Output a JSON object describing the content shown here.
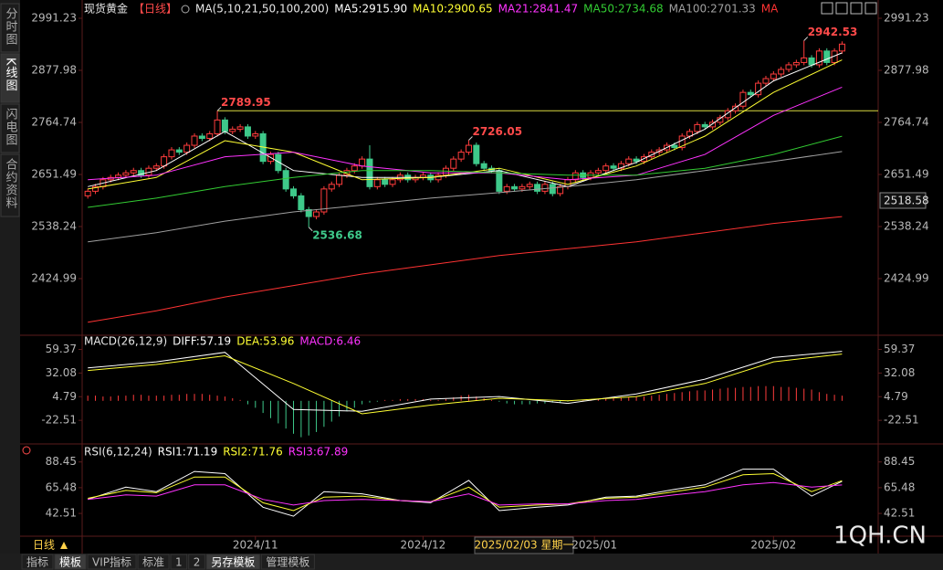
{
  "chart_data": [
    {
      "type": "candlestick",
      "title": "现货黄金",
      "period": "【日线】",
      "indicator": "MA(5,10,21,50,100,200)",
      "xlim": [
        -0.5,
        103.5
      ],
      "ylim": [
        2305.8,
        3015.07
      ],
      "yticks": [
        2991.23,
        2877.98,
        2764.74,
        2651.49,
        2538.24,
        2424.99
      ],
      "up_color": "#ff3c3c",
      "down_color": "#3ec98a",
      "open": [
        2605,
        2615,
        2625,
        2640,
        2645,
        2650,
        2655,
        2660,
        2650,
        2665,
        2670,
        2690,
        2705,
        2700,
        2715,
        2735,
        2730,
        2740,
        2770,
        2745,
        2750,
        2755,
        2735,
        2740,
        2680,
        2695,
        2660,
        2620,
        2605,
        2575,
        2560,
        2570,
        2620,
        2630,
        2650,
        2660,
        2670,
        2685,
        2625,
        2640,
        2630,
        2640,
        2650,
        2640,
        2645,
        2650,
        2640,
        2650,
        2665,
        2685,
        2700,
        2715,
        2675,
        2665,
        2660,
        2615,
        2625,
        2620,
        2625,
        2630,
        2615,
        2630,
        2610,
        2625,
        2640,
        2655,
        2645,
        2655,
        2660,
        2670,
        2665,
        2675,
        2685,
        2680,
        2690,
        2700,
        2705,
        2715,
        2710,
        2735,
        2745,
        2760,
        2755,
        2765,
        2775,
        2790,
        2800,
        2830,
        2825,
        2850,
        2860,
        2870,
        2880,
        2890,
        2895,
        2905,
        2890,
        2920,
        2895,
        2920
      ],
      "high": [
        2621,
        2631,
        2646,
        2651,
        2656,
        2661,
        2666,
        2666,
        2671,
        2676,
        2696,
        2711,
        2711,
        2721,
        2741,
        2741,
        2746,
        2789.95,
        2776,
        2756,
        2761,
        2761,
        2746,
        2746,
        2701,
        2701,
        2666,
        2626,
        2611,
        2581,
        2576,
        2626,
        2636,
        2656,
        2666,
        2676,
        2691,
        2715,
        2646,
        2646,
        2646,
        2656,
        2656,
        2651,
        2656,
        2656,
        2656,
        2671,
        2691,
        2706,
        2726.05,
        2721,
        2681,
        2671,
        2666,
        2631,
        2631,
        2631,
        2636,
        2636,
        2636,
        2636,
        2631,
        2646,
        2661,
        2661,
        2661,
        2666,
        2676,
        2676,
        2681,
        2691,
        2691,
        2696,
        2706,
        2711,
        2721,
        2721,
        2741,
        2751,
        2766,
        2766,
        2771,
        2781,
        2796,
        2806,
        2836,
        2836,
        2856,
        2866,
        2876,
        2886,
        2896,
        2901,
        2942.53,
        2911,
        2926,
        2926,
        2926,
        2941
      ],
      "low": [
        2599,
        2609,
        2619,
        2634,
        2639,
        2644,
        2649,
        2644,
        2644,
        2659,
        2664,
        2684,
        2694,
        2694,
        2709,
        2724,
        2724,
        2734,
        2739,
        2739,
        2744,
        2729,
        2729,
        2674,
        2674,
        2654,
        2614,
        2599,
        2569,
        2536.68,
        2554,
        2564,
        2614,
        2624,
        2644,
        2654,
        2664,
        2619,
        2619,
        2624,
        2624,
        2634,
        2634,
        2634,
        2639,
        2634,
        2634,
        2644,
        2659,
        2679,
        2694,
        2669,
        2659,
        2654,
        2609,
        2609,
        2614,
        2614,
        2619,
        2609,
        2609,
        2604,
        2604,
        2619,
        2634,
        2639,
        2639,
        2649,
        2654,
        2659,
        2659,
        2669,
        2674,
        2674,
        2684,
        2694,
        2699,
        2704,
        2704,
        2729,
        2739,
        2749,
        2749,
        2759,
        2769,
        2784,
        2794,
        2819,
        2819,
        2844,
        2854,
        2864,
        2874,
        2884,
        2889,
        2884,
        2884,
        2889,
        2889,
        2914
      ],
      "close": [
        2615,
        2625,
        2640,
        2645,
        2650,
        2655,
        2660,
        2650,
        2665,
        2670,
        2690,
        2705,
        2700,
        2715,
        2735,
        2730,
        2740,
        2770,
        2745,
        2750,
        2755,
        2735,
        2740,
        2680,
        2695,
        2660,
        2620,
        2605,
        2575,
        2560,
        2570,
        2620,
        2630,
        2650,
        2660,
        2670,
        2685,
        2625,
        2640,
        2630,
        2640,
        2650,
        2640,
        2645,
        2650,
        2640,
        2650,
        2665,
        2685,
        2700,
        2715,
        2675,
        2665,
        2660,
        2615,
        2625,
        2620,
        2625,
        2630,
        2615,
        2630,
        2610,
        2625,
        2640,
        2655,
        2645,
        2655,
        2660,
        2670,
        2665,
        2675,
        2685,
        2680,
        2690,
        2700,
        2705,
        2715,
        2710,
        2735,
        2745,
        2760,
        2755,
        2765,
        2775,
        2790,
        2800,
        2830,
        2825,
        2850,
        2860,
        2870,
        2880,
        2890,
        2895,
        2905,
        2890,
        2920,
        2895,
        2920,
        2935
      ],
      "series": [
        {
          "name": "MA5:2915.90",
          "color": "#ffffff",
          "x": [
            0,
            9,
            18,
            27,
            36,
            45,
            54,
            63,
            72,
            81,
            90,
            99
          ],
          "values": [
            2625,
            2660,
            2745,
            2660,
            2645,
            2645,
            2660,
            2625,
            2678,
            2750,
            2855,
            2915.9
          ]
        },
        {
          "name": "MA10:2900.65",
          "color": "#ffff33",
          "x": [
            0,
            9,
            18,
            27,
            36,
            45,
            54,
            63,
            72,
            81,
            90,
            99
          ],
          "values": [
            2620,
            2645,
            2725,
            2700,
            2640,
            2645,
            2665,
            2630,
            2670,
            2735,
            2830,
            2900.65
          ]
        },
        {
          "name": "MA21:2841.47",
          "color": "#ff33ff",
          "x": [
            0,
            9,
            18,
            27,
            36,
            45,
            54,
            63,
            72,
            81,
            90,
            99
          ],
          "values": [
            2640,
            2650,
            2690,
            2700,
            2670,
            2655,
            2655,
            2640,
            2650,
            2695,
            2780,
            2841.47
          ]
        },
        {
          "name": "MA50:2734.68",
          "color": "#33cc33",
          "x": [
            0,
            9,
            18,
            27,
            36,
            45,
            54,
            63,
            72,
            81,
            90,
            99
          ],
          "values": [
            2580,
            2600,
            2625,
            2645,
            2660,
            2660,
            2655,
            2650,
            2650,
            2665,
            2695,
            2734.68
          ]
        },
        {
          "name": "MA100:2701.33",
          "color": "#a0a0a0",
          "x": [
            0,
            9,
            18,
            27,
            36,
            45,
            54,
            63,
            72,
            81,
            90,
            99
          ],
          "values": [
            2505,
            2525,
            2550,
            2570,
            2585,
            2600,
            2612,
            2625,
            2640,
            2660,
            2680,
            2701.33
          ]
        },
        {
          "name": "MA",
          "color": "#ff3333",
          "x": [
            0,
            9,
            18,
            27,
            36,
            45,
            54,
            63,
            72,
            81,
            90,
            99
          ],
          "values": [
            2330,
            2355,
            2385,
            2410,
            2435,
            2455,
            2475,
            2490,
            2505,
            2525,
            2545,
            2560
          ]
        }
      ],
      "hline": {
        "value": 2789.95,
        "from": 17,
        "color": "#d8d840"
      },
      "annotations": [
        {
          "label": "2789.95",
          "x": 17,
          "y": 2789.95,
          "color": "#ff4a4a"
        },
        {
          "label": "2536.68",
          "x": 29,
          "y": 2536.68,
          "color": "#3ec98a"
        },
        {
          "label": "2726.05",
          "x": 50,
          "y": 2726.05,
          "color": "#ff4a4a"
        },
        {
          "label": "2942.53",
          "x": 94,
          "y": 2942.53,
          "color": "#ff4a4a"
        }
      ]
    },
    {
      "type": "macd",
      "indicator": "MACD(26,12,9)",
      "xlim": [
        -0.5,
        103.5
      ],
      "ylim": [
        -48.71,
        74.65
      ],
      "yticks": [
        59.37,
        32.08,
        4.79,
        -22.51
      ],
      "series": [
        {
          "name": "DIFF:57.19",
          "color": "#ffffff",
          "x": [
            0,
            9,
            18,
            27,
            36,
            45,
            54,
            63,
            72,
            81,
            90,
            99
          ],
          "values": [
            38,
            45,
            56,
            -10,
            -12,
            2,
            5,
            -3,
            8,
            25,
            50,
            57.19
          ]
        },
        {
          "name": "DEA:53.96",
          "color": "#ffff33",
          "x": [
            0,
            9,
            18,
            27,
            36,
            45,
            54,
            63,
            72,
            81,
            90,
            99
          ],
          "values": [
            35,
            42,
            52,
            20,
            -15,
            -5,
            3,
            0,
            5,
            20,
            45,
            53.96
          ]
        }
      ],
      "histogram": {
        "name": "MACD:6.46",
        "color": "#ff33ff",
        "up_color": "#ff3c3c",
        "down_color": "#3ec98a",
        "values": [
          6,
          6,
          5,
          5,
          6,
          6,
          7,
          7,
          6,
          6,
          6,
          7,
          7,
          8,
          8,
          8,
          7,
          6,
          5,
          3,
          1,
          -4,
          -8,
          -14,
          -20,
          -26,
          -32,
          -38,
          -42,
          -40,
          -36,
          -30,
          -24,
          -18,
          -12,
          -8,
          -4,
          -2,
          -1,
          1,
          1,
          2,
          2,
          2,
          2,
          1,
          1,
          2,
          4,
          6,
          7,
          5,
          3,
          1,
          -1,
          -3,
          -4,
          -4,
          -4,
          -3,
          -3,
          -2,
          -2,
          -1,
          0,
          1,
          1,
          2,
          3,
          3,
          4,
          4,
          5,
          5,
          6,
          7,
          8,
          9,
          10,
          11,
          12,
          12,
          13,
          14,
          15,
          15,
          16,
          16,
          17,
          17,
          17,
          16,
          16,
          15,
          14,
          13,
          10,
          8,
          7,
          6
        ]
      }
    },
    {
      "type": "line",
      "indicator": "RSI(6,12,24)",
      "xlim": [
        -0.5,
        103.5
      ],
      "ylim": [
        23.8,
        102.9
      ],
      "yticks": [
        88.45,
        65.48,
        42.51
      ],
      "xticks": [
        {
          "value": 22,
          "label": "2024/11"
        },
        {
          "value": 44,
          "label": "2024/12"
        },
        {
          "value": 66.5,
          "label": "2025/01"
        },
        {
          "value": 90,
          "label": "2025/02"
        }
      ],
      "series": [
        {
          "name": "RSI1:71.19",
          "color": "#ffffff",
          "x": [
            0,
            5,
            9,
            14,
            18,
            23,
            27,
            31,
            36,
            41,
            45,
            50,
            54,
            59,
            63,
            68,
            72,
            77,
            81,
            86,
            90,
            95,
            99
          ],
          "values": [
            55,
            66,
            62,
            80,
            78,
            48,
            40,
            62,
            60,
            54,
            52,
            72,
            45,
            48,
            50,
            57,
            58,
            64,
            68,
            82,
            82,
            58,
            71.19
          ]
        },
        {
          "name": "RSI2:71.76",
          "color": "#ffff33",
          "x": [
            0,
            5,
            9,
            14,
            18,
            23,
            27,
            31,
            36,
            41,
            45,
            50,
            54,
            59,
            63,
            68,
            72,
            77,
            81,
            86,
            90,
            95,
            99
          ],
          "values": [
            56,
            63,
            61,
            75,
            75,
            52,
            45,
            57,
            58,
            54,
            53,
            66,
            48,
            50,
            51,
            56,
            57,
            62,
            66,
            77,
            78,
            62,
            71.76
          ]
        },
        {
          "name": "RSI3:67.89",
          "color": "#ff33ff",
          "x": [
            0,
            5,
            9,
            14,
            18,
            23,
            27,
            31,
            36,
            41,
            45,
            50,
            54,
            59,
            63,
            68,
            72,
            77,
            81,
            86,
            90,
            95,
            99
          ],
          "values": [
            55,
            59,
            58,
            68,
            68,
            55,
            50,
            54,
            55,
            54,
            53,
            60,
            50,
            51,
            51,
            54,
            55,
            59,
            62,
            68,
            70,
            66,
            67.89
          ]
        }
      ]
    }
  ],
  "ui": {
    "sidebar_tabs": [
      "分时图",
      "K线图",
      "闪电图",
      "合约资料"
    ],
    "sidebar_active": 1,
    "period_button": "日线",
    "cursor_date": "2025/02/03 星期一",
    "price_tag": "2518.58",
    "watermark": "1QH.CN",
    "bottom_tabs": [
      "指标",
      "模板",
      "VIP指标",
      "标准",
      "1",
      "2",
      "另存模板",
      "管理模板"
    ],
    "bottom_active": [
      1,
      6
    ]
  }
}
